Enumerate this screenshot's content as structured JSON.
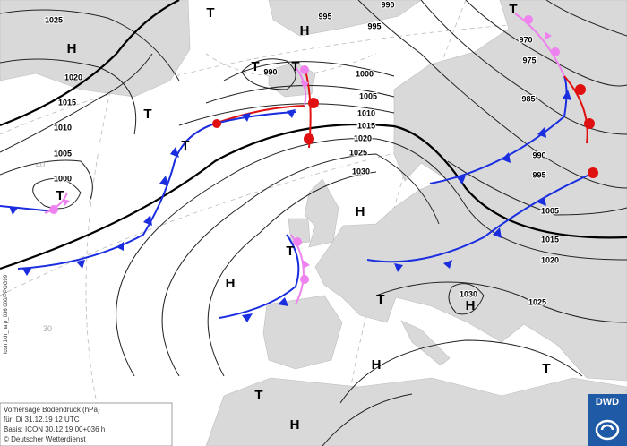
{
  "map": {
    "isobar_labels": [
      1025,
      1020,
      1015,
      1010,
      1005,
      1000,
      995,
      995,
      990,
      990,
      1000,
      1005,
      1010,
      1015,
      1020,
      1025,
      1030,
      970,
      975,
      985,
      990,
      995,
      1005,
      1015,
      1020,
      1030,
      1025
    ],
    "centers": [
      "T",
      "H",
      "H",
      "T",
      "T",
      "T",
      "T",
      "T",
      "H",
      "T",
      "H",
      "T",
      "H",
      "T",
      "H",
      "T",
      "T",
      "H"
    ],
    "latitude_labels": [
      "40",
      "30"
    ],
    "side_text": "icon 1kh_na p_036 000/PPOG99",
    "info": [
      "Vorhersage Bodendruck (hPa)",
      "für: Di 31.12.19 12 UTC",
      "Basis: ICON 30.12.19 00+036 h",
      "© Deutscher Wetterdienst"
    ],
    "logo": "DWD"
  }
}
